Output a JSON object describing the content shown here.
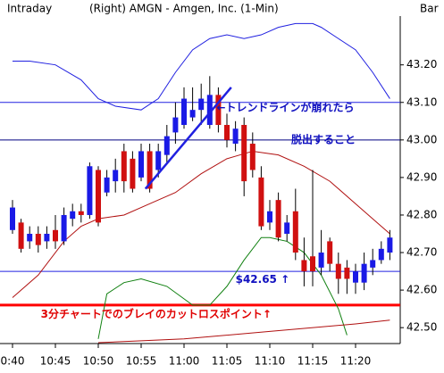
{
  "header": {
    "left": "Intraday",
    "center": "(Right)  AMGN - Amgen, Inc.  (1-Min)",
    "right": "Bar"
  },
  "chart_data": {
    "type": "candlestick",
    "categories": [
      "0:40",
      null,
      null,
      null,
      null,
      "10:45",
      null,
      null,
      null,
      null,
      "10:50",
      null,
      null,
      null,
      null,
      "10:55",
      null,
      null,
      null,
      null,
      "11:00",
      null,
      null,
      null,
      null,
      "11:05",
      null,
      null,
      null,
      null,
      "11:10",
      null,
      null,
      null,
      null,
      "11:15",
      null,
      null,
      null,
      null,
      "11:20",
      null,
      null,
      null,
      null
    ],
    "open": [
      42.76,
      42.78,
      42.73,
      42.75,
      42.73,
      42.76,
      42.73,
      42.79,
      42.81,
      42.8,
      42.92,
      42.86,
      42.89,
      42.97,
      42.95,
      42.9,
      42.97,
      42.92,
      42.96,
      43.02,
      43.04,
      43.06,
      43.08,
      43.04,
      43.12,
      43.04,
      42.99,
      43.04,
      42.99,
      42.9,
      42.78,
      42.84,
      42.75,
      42.81,
      42.68,
      42.69,
      42.66,
      42.73,
      42.67,
      42.66,
      42.62,
      42.62,
      42.66,
      42.68,
      42.7
    ],
    "high": [
      42.84,
      42.79,
      42.77,
      42.77,
      42.77,
      42.8,
      42.82,
      42.83,
      42.83,
      42.94,
      42.93,
      42.92,
      42.95,
      42.99,
      42.97,
      42.99,
      42.99,
      42.99,
      43.04,
      43.1,
      43.14,
      43.14,
      43.15,
      43.17,
      43.14,
      43.07,
      43.05,
      43.06,
      43.02,
      42.93,
      42.84,
      42.86,
      42.8,
      42.87,
      42.74,
      42.92,
      42.76,
      42.74,
      42.7,
      42.68,
      42.67,
      42.7,
      42.71,
      42.73,
      42.76
    ],
    "low": [
      42.75,
      42.7,
      42.71,
      42.7,
      42.71,
      42.71,
      42.72,
      42.77,
      42.78,
      42.79,
      42.77,
      42.85,
      42.86,
      42.86,
      42.86,
      42.89,
      42.86,
      42.9,
      42.94,
      42.99,
      43.03,
      43.05,
      43.04,
      43.03,
      43.02,
      42.98,
      42.97,
      42.85,
      42.9,
      42.76,
      42.76,
      42.73,
      42.73,
      42.68,
      42.61,
      42.61,
      42.64,
      42.65,
      42.59,
      42.59,
      42.59,
      42.6,
      42.64,
      42.67,
      42.68
    ],
    "close": [
      42.82,
      42.71,
      42.75,
      42.72,
      42.75,
      42.73,
      42.8,
      42.81,
      42.8,
      42.93,
      42.78,
      42.9,
      42.92,
      42.89,
      42.87,
      42.97,
      42.87,
      42.97,
      43.01,
      43.06,
      43.11,
      43.08,
      43.11,
      43.12,
      43.04,
      43.0,
      43.03,
      42.89,
      42.92,
      42.77,
      42.81,
      42.74,
      42.78,
      42.7,
      42.65,
      42.65,
      42.7,
      42.67,
      42.63,
      42.63,
      42.65,
      42.67,
      42.68,
      42.71,
      42.74
    ],
    "up_color": "#1a1ae6",
    "down_color": "#d01010",
    "overlays": [
      {
        "color": "#2020e0",
        "x": [
          0,
          2,
          5,
          8,
          10,
          12,
          15,
          17,
          19,
          21,
          23,
          25,
          27,
          29,
          31,
          33,
          35,
          36,
          38,
          40,
          42,
          44
        ],
        "values": [
          43.21,
          43.21,
          43.2,
          43.16,
          43.11,
          43.09,
          43.08,
          43.11,
          43.18,
          43.24,
          43.27,
          43.28,
          43.27,
          43.28,
          43.3,
          43.31,
          43.31,
          43.3,
          43.27,
          43.24,
          43.18,
          43.11
        ]
      },
      {
        "color": "#b01010",
        "x": [
          0,
          3,
          6,
          8,
          10,
          13,
          16,
          19,
          22,
          25,
          28,
          31,
          34,
          37,
          40,
          43,
          44
        ],
        "values": [
          42.58,
          42.64,
          42.73,
          42.77,
          42.79,
          42.8,
          42.83,
          42.86,
          42.91,
          42.95,
          42.97,
          42.96,
          42.93,
          42.89,
          42.83,
          42.77,
          42.75
        ]
      },
      {
        "color": "#108010",
        "x": [
          10,
          11,
          13,
          15,
          18,
          21,
          23,
          25,
          27,
          29,
          30,
          32,
          34,
          36,
          38,
          39
        ],
        "values": [
          42.47,
          42.59,
          42.62,
          42.63,
          42.61,
          42.56,
          42.56,
          42.61,
          42.68,
          42.74,
          42.74,
          42.73,
          42.7,
          42.64,
          42.55,
          42.48
        ]
      },
      {
        "color": "#b01010",
        "x": [
          10,
          20,
          30,
          40,
          44
        ],
        "values": [
          42.46,
          42.47,
          42.49,
          42.51,
          42.52
        ]
      }
    ],
    "hlines": [
      {
        "value": 43.1,
        "color": "#2020e0"
      },
      {
        "value": 43.0,
        "color": "#000080"
      },
      {
        "value": 42.65,
        "color": "#2020e0"
      },
      {
        "value": 42.56,
        "color": "#ff0000"
      }
    ],
    "trendline": {
      "color": "#2020e0",
      "x": [
        15.5,
        25.5
      ],
      "y": [
        42.87,
        43.14
      ]
    },
    "annotations": [
      {
        "text": "←トレンドラインが崩れたら",
        "color": "#1010c0",
        "x": 23.8,
        "y": 43.085
      },
      {
        "text": "脱出すること",
        "color": "#1010c0",
        "x": 32.5,
        "y": 43.0
      },
      {
        "text": "$42.65 ↑",
        "color": "#1010c0",
        "x": 26,
        "y": 42.627
      },
      {
        "text": "3分チャートでのブレイのカットロスポイント↑",
        "color": "#e00000",
        "x": 3.3,
        "y": 42.535
      }
    ],
    "ylim": [
      42.46,
      43.33
    ],
    "yticks": [
      {
        "value": 42.5,
        "label": "42.50"
      },
      {
        "value": 42.6,
        "label": "42.60"
      },
      {
        "value": 42.7,
        "label": "42.70"
      },
      {
        "value": 42.8,
        "label": "42.80"
      },
      {
        "value": 42.9,
        "label": "42.90"
      },
      {
        "value": 43.0,
        "label": "43.00"
      },
      {
        "value": 43.1,
        "label": "43.10"
      },
      {
        "value": 43.2,
        "label": "43.20"
      }
    ]
  }
}
